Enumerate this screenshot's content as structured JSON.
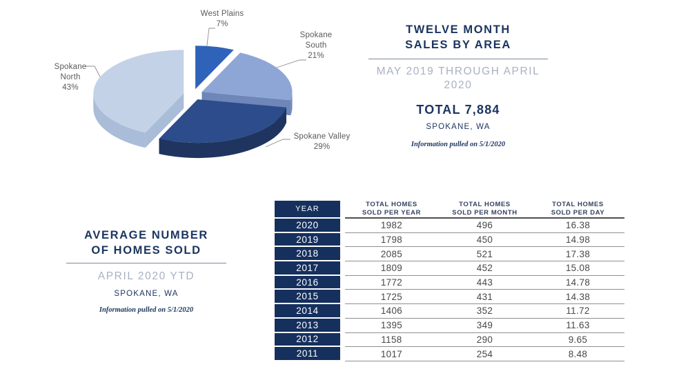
{
  "chart_data": {
    "type": "pie",
    "title": "TWELVE MONTH SALES BY AREA",
    "labels": [
      "West Plains",
      "Spokane South",
      "Spokane Valley",
      "Spokane North"
    ],
    "values": [
      7,
      21,
      29,
      43
    ],
    "unit": "percent",
    "style": "3d-exploded",
    "direction": "clockwise",
    "start_angle_deg": 0,
    "slice_colors": [
      "#2f63ba",
      "#8ea6d6",
      "#2c4c8b",
      "#c4d2e8"
    ],
    "slice_side_colors": [
      "#1e4286",
      "#6e86b8",
      "#1f3560",
      "#a9bcd8"
    ],
    "display_labels": [
      "West Plains\n7%",
      "Spokane\nSouth\n21%",
      "Spokane Valley\n29%",
      "Spokane\nNorth\n43%"
    ]
  },
  "sales_header": {
    "title": "TWELVE MONTH\nSALES BY AREA",
    "period": "MAY 2019 THROUGH APRIL\n2020",
    "total": "TOTAL 7,884",
    "location": "SPOKANE, WA",
    "note": "Information pulled on 5/1/2020"
  },
  "avg_header": {
    "title": "AVERAGE NUMBER\nOF HOMES SOLD",
    "period": "APRIL 2020 YTD",
    "location": "SPOKANE, WA",
    "note": "Information pulled on 5/1/2020"
  },
  "table": {
    "year_header": "YEAR",
    "col_headers": [
      "TOTAL HOMES\nSOLD PER YEAR",
      "TOTAL HOMES\nSOLD PER MONTH",
      "TOTAL HOMES\nSOLD PER DAY"
    ],
    "rows": [
      {
        "year": "2020",
        "per_year": "1982",
        "per_month": "496",
        "per_day": "16.38"
      },
      {
        "year": "2019",
        "per_year": "1798",
        "per_month": "450",
        "per_day": "14.98"
      },
      {
        "year": "2018",
        "per_year": "2085",
        "per_month": "521",
        "per_day": "17.38"
      },
      {
        "year": "2017",
        "per_year": "1809",
        "per_month": "452",
        "per_day": "15.08"
      },
      {
        "year": "2016",
        "per_year": "1772",
        "per_month": "443",
        "per_day": "14.78"
      },
      {
        "year": "2015",
        "per_year": "1725",
        "per_month": "431",
        "per_day": "14.38"
      },
      {
        "year": "2014",
        "per_year": "1406",
        "per_month": "352",
        "per_day": "11.72"
      },
      {
        "year": "2013",
        "per_year": "1395",
        "per_month": "349",
        "per_day": "11.63"
      },
      {
        "year": "2012",
        "per_year": "1158",
        "per_month": "290",
        "per_day": "9.65"
      },
      {
        "year": "2011",
        "per_year": "1017",
        "per_month": "254",
        "per_day": "8.48"
      }
    ]
  },
  "colors": {
    "navy": "#16305e",
    "title_navy": "#1c3560",
    "period_gray_blue": "#a9b0c2",
    "pie_label_gray": "#595959"
  }
}
